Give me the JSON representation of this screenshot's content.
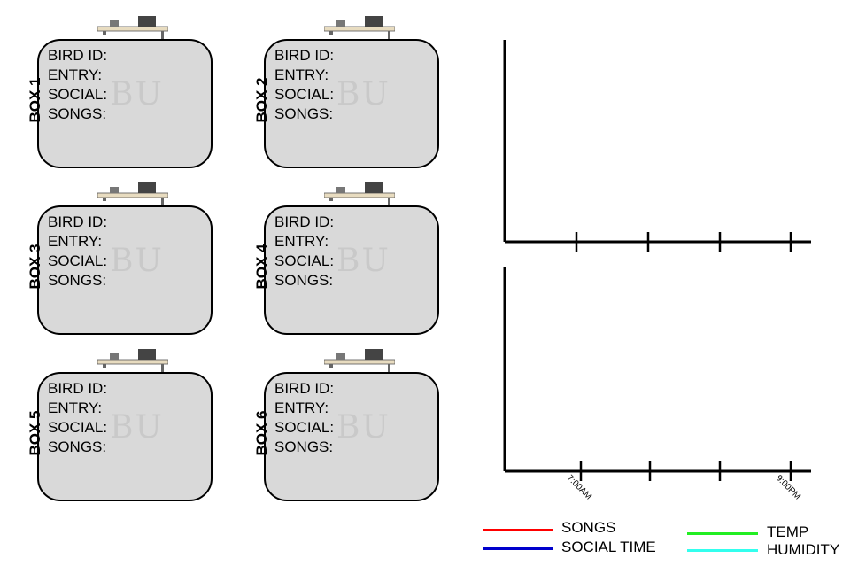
{
  "boxes": [
    {
      "label": "BOX 1",
      "bird_id": "BIRD ID:",
      "entry": "ENTRY:",
      "social": "SOCIAL:",
      "songs": "SONGS:",
      "watermark": "BU"
    },
    {
      "label": "BOX 2",
      "bird_id": "BIRD ID:",
      "entry": "ENTRY:",
      "social": "SOCIAL:",
      "songs": "SONGS:",
      "watermark": "BU"
    },
    {
      "label": "BOX 3",
      "bird_id": "BIRD ID:",
      "entry": "ENTRY:",
      "social": "SOCIAL:",
      "songs": "SONGS:",
      "watermark": "BU"
    },
    {
      "label": "BOX 4",
      "bird_id": "BIRD ID:",
      "entry": "ENTRY:",
      "social": "SOCIAL:",
      "songs": "SONGS:",
      "watermark": "BU"
    },
    {
      "label": "BOX 5",
      "bird_id": "BIRD ID:",
      "entry": "ENTRY:",
      "social": "SOCIAL:",
      "songs": "SONGS:",
      "watermark": "BU"
    },
    {
      "label": "BOX 6",
      "bird_id": "BIRD ID:",
      "entry": "ENTRY:",
      "social": "SOCIAL:",
      "songs": "SONGS:",
      "watermark": "BU"
    }
  ],
  "plots": {
    "tick_labels": [
      "7:00AM",
      "9:00PM"
    ]
  },
  "legend": [
    {
      "label": "SONGS",
      "color": "#ff0000"
    },
    {
      "label": "SOCIAL TIME",
      "color": "#0000cc"
    },
    {
      "label": "TEMP",
      "color": "#22ee22"
    },
    {
      "label": "HUMIDITY",
      "color": "#33ffee"
    }
  ]
}
